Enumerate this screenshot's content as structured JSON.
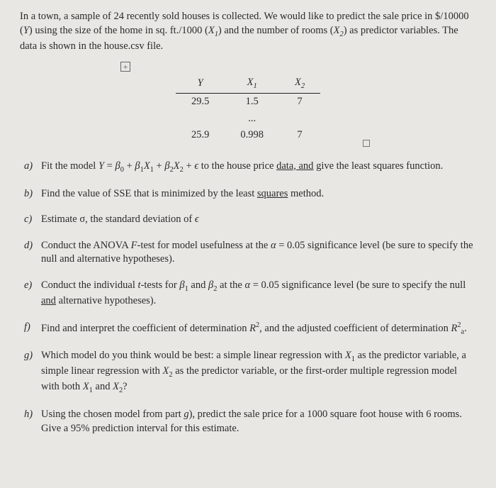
{
  "intro": {
    "line1_a": "In a town, a sample of 24 recently sold houses is collected. We would like to predict the sale",
    "line2_a": "price in $/10000 (",
    "line2_b": ") using the size of the home in sq. ft./1000 (",
    "line2_c": ") and the number of",
    "line3_a": "rooms (",
    "line3_b": ") as predictor variables. The data is shown in the house.csv file."
  },
  "table": {
    "h1": "Y",
    "h2": "X",
    "h2sub": "1",
    "h3": "X",
    "h3sub": "2",
    "r1c1": "29.5",
    "r1c2": "1.5",
    "r1c3": "7",
    "dots": "...",
    "r2c1": "25.9",
    "r2c2": "0.998",
    "r2c3": "7"
  },
  "q": {
    "a_m": "a)",
    "a_1": "Fit the model ",
    "a_eqY": "Y",
    "a_eqEq": " = ",
    "a_b0": "β",
    "a_b0s": "0",
    "a_p1": " + ",
    "a_b1": "β",
    "a_b1s": "1",
    "a_x1": "X",
    "a_x1s": "1",
    "a_p2": " + ",
    "a_b2": "β",
    "a_b2s": "2",
    "a_x2": "X",
    "a_x2s": "2",
    "a_p3": " + ",
    "a_eps": "ϵ",
    "a_2": " to the house price ",
    "a_3u": "data, and",
    "a_4": " give the least squares function.",
    "b_m": "b)",
    "b_1": "Find the value of SSE that is minimized by the least ",
    "b_u": "squares",
    "b_2": " method.",
    "c_m": "c)",
    "c_1": "Estimate σ, the standard deviation of ",
    "c_eps": "ϵ",
    "d_m": "d)",
    "d_1": "Conduct the ANOVA ",
    "d_F": "F",
    "d_2": "-test for model usefulness at the ",
    "d_a": "α",
    "d_3": " = 0.05 significance level (be sure to specify the null and alternative hypotheses).",
    "e_m": "e)",
    "e_1": "Conduct the individual ",
    "e_t": "t",
    "e_2": "-tests for ",
    "e_b1": "β",
    "e_b1s": "1",
    "e_and": " and ",
    "e_b2": "β",
    "e_b2s": "2",
    "e_3": " at the ",
    "e_a": "α",
    "e_4": " = 0.05 significance level (be sure to specify the null ",
    "e_andu": "and",
    "e_5": " alternative hypotheses).",
    "f_m": "f)",
    "f_1": "Find and interpret the coefficient of determination ",
    "f_R": "R",
    "f_2sup": "2",
    "f_2": ", and the adjusted coefficient of determination ",
    "f_Ra": "R",
    "f_asub": "a",
    "f_asup": "2",
    "f_3": ".",
    "g_m": "g)",
    "g_1": "Which model do you think would be best: a simple linear regression with ",
    "g_x1": "X",
    "g_x1s": "1",
    "g_2": " as the predictor variable, a simple linear regression with ",
    "g_x2": "X",
    "g_x2s": "2",
    "g_3": " as the predictor variable, or the first-order multiple regression model with both ",
    "g_x1b": "X",
    "g_x1bs": "1",
    "g_and": " and ",
    "g_x2b": "X",
    "g_x2bs": "2",
    "g_q": "?",
    "h_m": "h)",
    "h_1": "Using the chosen model from part ",
    "h_g": "g",
    "h_2": "), predict the sale price for a 1000 square foot house with 6 rooms. Give a 95% prediction interval for this estimate."
  }
}
